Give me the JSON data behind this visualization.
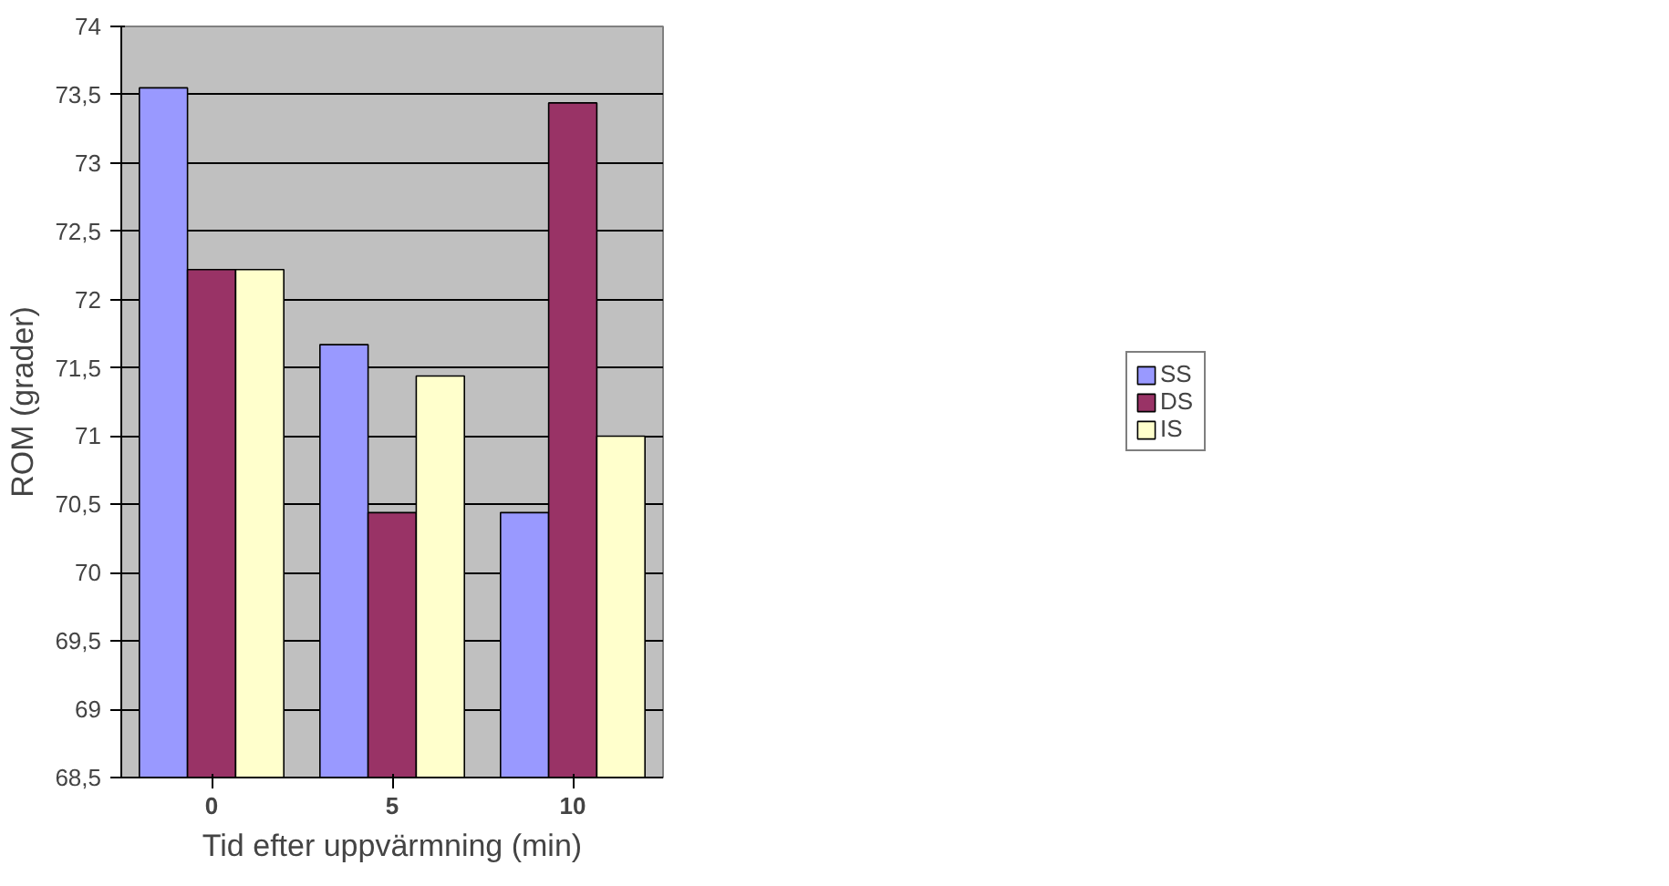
{
  "chart_data": {
    "type": "bar",
    "xlabel": "Tid efter uppvärmning (min)",
    "ylabel": "ROM (grader)",
    "categories": [
      "0",
      "5",
      "10"
    ],
    "series": [
      {
        "name": "SS",
        "color": "#9999ff",
        "values": [
          73.55,
          71.67,
          70.44
        ]
      },
      {
        "name": "DS",
        "color": "#993366",
        "values": [
          72.22,
          70.44,
          73.44
        ]
      },
      {
        "name": "IS",
        "color": "#ffffcc",
        "values": [
          72.22,
          71.44,
          71.0
        ]
      }
    ],
    "ylim": [
      68.5,
      74
    ],
    "yticks": [
      {
        "value": 68.5,
        "label": "68,5"
      },
      {
        "value": 69,
        "label": "69"
      },
      {
        "value": 69.5,
        "label": "69,5"
      },
      {
        "value": 70,
        "label": "70"
      },
      {
        "value": 70.5,
        "label": "70,5"
      },
      {
        "value": 71,
        "label": "71"
      },
      {
        "value": 71.5,
        "label": "71,5"
      },
      {
        "value": 72,
        "label": "72"
      },
      {
        "value": 72.5,
        "label": "72,5"
      },
      {
        "value": 73,
        "label": "73"
      },
      {
        "value": 73.5,
        "label": "73,5"
      },
      {
        "value": 74,
        "label": "74"
      }
    ],
    "grid": "y",
    "legend": "right"
  }
}
